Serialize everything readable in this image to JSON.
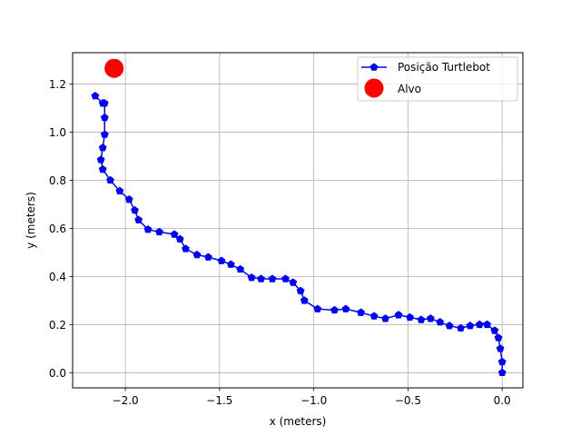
{
  "chart_data": {
    "type": "line",
    "xlabel": "x (meters)",
    "ylabel": "y (meters)",
    "xlim": [
      -2.28,
      0.11
    ],
    "ylim": [
      -0.063,
      1.33
    ],
    "grid": true,
    "legend_placement": "top-right",
    "x_ticks": [
      -2.0,
      -1.5,
      -1.0,
      -0.5,
      0.0
    ],
    "x_tick_labels": [
      "−2.0",
      "−1.5",
      "−1.0",
      "−0.5",
      "0.0"
    ],
    "y_ticks": [
      0.0,
      0.2,
      0.4,
      0.6,
      0.8,
      1.0,
      1.2
    ],
    "y_tick_labels": [
      "0.0",
      "0.2",
      "0.4",
      "0.6",
      "0.8",
      "1.0",
      "1.2"
    ],
    "series": [
      {
        "name": "Posição Turtlebot",
        "kind": "line-marker",
        "color": "#0000ff",
        "marker": "pentagon",
        "x": [
          0.0,
          0.0,
          -0.01,
          -0.02,
          -0.04,
          -0.08,
          -0.12,
          -0.17,
          -0.22,
          -0.28,
          -0.33,
          -0.38,
          -0.43,
          -0.49,
          -0.55,
          -0.62,
          -0.68,
          -0.75,
          -0.83,
          -0.89,
          -0.98,
          -1.05,
          -1.07,
          -1.11,
          -1.15,
          -1.22,
          -1.28,
          -1.33,
          -1.39,
          -1.44,
          -1.49,
          -1.56,
          -1.62,
          -1.68,
          -1.71,
          -1.74,
          -1.82,
          -1.88,
          -1.93,
          -1.95,
          -1.98,
          -2.03,
          -2.08,
          -2.12,
          -2.13,
          -2.12,
          -2.11,
          -2.11,
          -2.11,
          -2.12,
          -2.16
        ],
        "y": [
          0.0,
          0.045,
          0.1,
          0.145,
          0.175,
          0.2,
          0.2,
          0.195,
          0.185,
          0.195,
          0.21,
          0.225,
          0.22,
          0.23,
          0.24,
          0.225,
          0.235,
          0.25,
          0.265,
          0.26,
          0.265,
          0.3,
          0.34,
          0.375,
          0.39,
          0.39,
          0.39,
          0.395,
          0.43,
          0.45,
          0.465,
          0.48,
          0.49,
          0.515,
          0.555,
          0.575,
          0.585,
          0.595,
          0.635,
          0.675,
          0.72,
          0.755,
          0.8,
          0.845,
          0.885,
          0.935,
          0.99,
          1.06,
          1.12,
          1.12,
          1.15
        ]
      },
      {
        "name": "Alvo",
        "kind": "scatter",
        "color": "#ff0000",
        "marker": "circle",
        "x": [
          -2.06
        ],
        "y": [
          1.265
        ]
      }
    ]
  }
}
